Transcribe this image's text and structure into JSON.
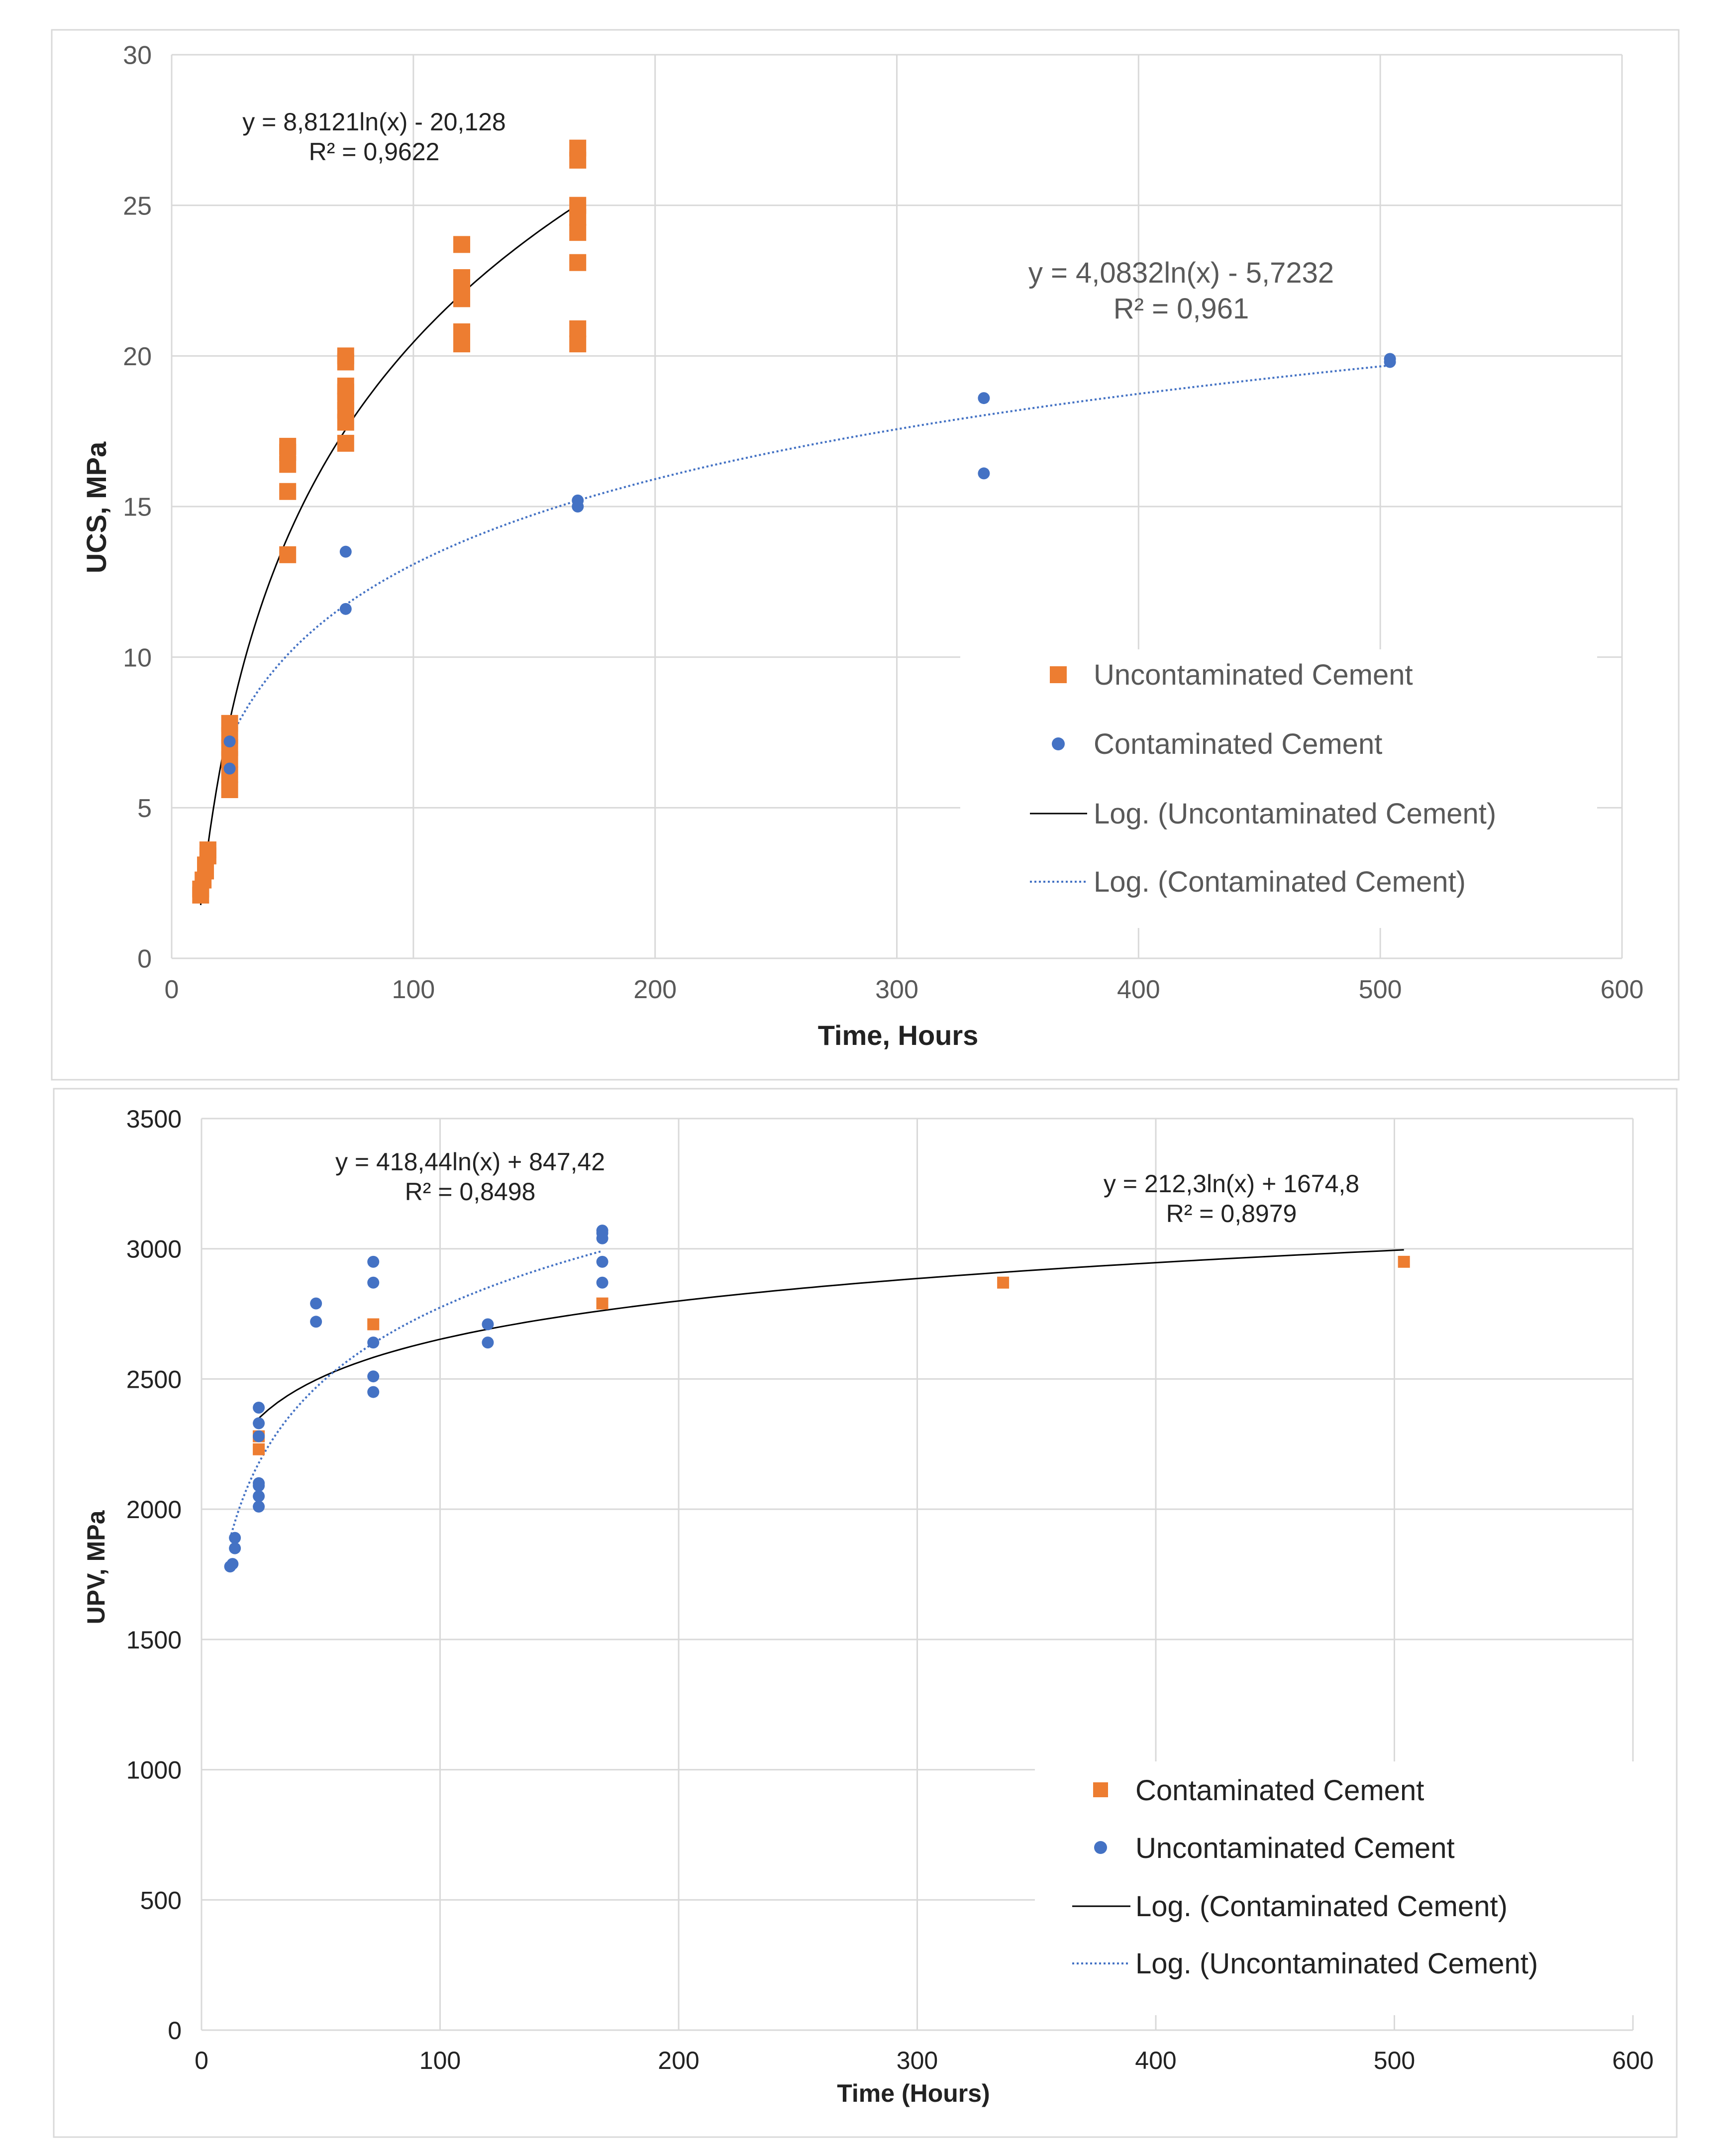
{
  "chart_data": [
    {
      "type": "scatter",
      "title": "",
      "xlabel": "Time, Hours",
      "ylabel": "UCS, MPa",
      "xlim": [
        0,
        600
      ],
      "ylim": [
        0,
        30
      ],
      "xticks": [
        "0",
        "100",
        "200",
        "300",
        "400",
        "500",
        "600"
      ],
      "yticks": [
        "0",
        "5",
        "10",
        "15",
        "20",
        "25",
        "30"
      ],
      "xtick_values": [
        0,
        100,
        200,
        300,
        400,
        500,
        600
      ],
      "ytick_values": [
        0,
        5,
        10,
        15,
        20,
        25,
        30
      ],
      "grid": true,
      "legend_position": "bottom-right",
      "series": [
        {
          "name": "Uncontaminated Cement",
          "marker": "square",
          "color": "#ED7D31",
          "x": [
            12,
            12,
            13,
            14,
            14,
            15,
            15,
            24,
            24,
            24,
            24,
            24,
            24,
            48,
            48,
            48,
            48,
            48,
            72,
            72,
            72,
            72,
            72,
            72,
            72,
            72,
            120,
            120,
            120,
            120,
            120,
            120,
            168,
            168,
            168,
            168,
            168,
            168,
            168,
            168
          ],
          "y": [
            2.1,
            2.3,
            2.6,
            2.9,
            3.1,
            3.4,
            3.6,
            5.6,
            6.1,
            6.6,
            7.0,
            7.4,
            7.8,
            13.4,
            15.5,
            16.4,
            16.8,
            17.0,
            17.1,
            17.8,
            18.2,
            18.5,
            18.8,
            19.0,
            19.8,
            20.0,
            20.4,
            20.8,
            21.9,
            22.3,
            22.6,
            23.7,
            20.4,
            20.9,
            23.1,
            24.1,
            24.6,
            25.0,
            26.5,
            26.9
          ],
          "trendline": {
            "name": "Log. (Uncontaminated Cement)",
            "style": "solid",
            "color": "#000000",
            "a": 8.8121,
            "b": -20.128,
            "x_range": [
              12,
              168
            ]
          }
        },
        {
          "name": "Contaminated Cement",
          "marker": "circle",
          "color": "#4472C4",
          "x": [
            24,
            24,
            72,
            72,
            168,
            168,
            336,
            336,
            504,
            504
          ],
          "y": [
            6.3,
            7.2,
            11.6,
            13.5,
            15.0,
            15.2,
            16.1,
            18.6,
            19.8,
            19.9
          ],
          "trendline": {
            "name": "Log. (Contaminated Cement)",
            "style": "dotted",
            "color": "#4472C4",
            "a": 4.0832,
            "b": -5.7232,
            "x_range": [
              24,
              504
            ]
          }
        }
      ],
      "annotations": [
        {
          "line1": "y = 8,8121ln(x) - 20,128",
          "line2": "R² = 0,9622"
        },
        {
          "line1": "y = 4,0832ln(x) - 5,7232",
          "line2": "R² = 0,961"
        }
      ],
      "legend": [
        {
          "label": "Uncontaminated Cement",
          "kind": "square",
          "color": "#ED7D31"
        },
        {
          "label": "Contaminated Cement",
          "kind": "circle",
          "color": "#4472C4"
        },
        {
          "label": "Log. (Uncontaminated Cement)",
          "kind": "solid",
          "color": "#000000"
        },
        {
          "label": "Log. (Contaminated Cement)",
          "kind": "dotted",
          "color": "#4472C4"
        }
      ]
    },
    {
      "type": "scatter",
      "title": "",
      "xlabel": "Time (Hours)",
      "ylabel": "UPV, MPa",
      "xlim": [
        0,
        600
      ],
      "ylim": [
        0,
        3500
      ],
      "xticks": [
        "0",
        "100",
        "200",
        "300",
        "400",
        "500",
        "600"
      ],
      "yticks": [
        "0",
        "500",
        "1000",
        "1500",
        "2000",
        "2500",
        "3000",
        "3500"
      ],
      "xtick_values": [
        0,
        100,
        200,
        300,
        400,
        500,
        600
      ],
      "ytick_values": [
        0,
        500,
        1000,
        1500,
        2000,
        2500,
        3000,
        3500
      ],
      "grid": true,
      "legend_position": "bottom-right",
      "series": [
        {
          "name": "Contaminated Cement",
          "marker": "square",
          "color": "#ED7D31",
          "x": [
            24,
            24,
            72,
            168,
            336,
            504
          ],
          "y": [
            2230,
            2280,
            2710,
            2790,
            2870,
            2950
          ],
          "trendline": {
            "name": "Log. (Contaminated Cement)",
            "style": "solid",
            "color": "#000000",
            "a": 212.3,
            "b": 1674.8,
            "x_range": [
              24,
              504
            ]
          }
        },
        {
          "name": "Uncontaminated Cement",
          "marker": "circle",
          "color": "#4472C4",
          "x": [
            12,
            13,
            14,
            14,
            24,
            24,
            24,
            24,
            24,
            24,
            24,
            48,
            48,
            72,
            72,
            72,
            72,
            72,
            120,
            120,
            168,
            168,
            168,
            168,
            168
          ],
          "y": [
            1780,
            1790,
            1850,
            1890,
            2010,
            2050,
            2090,
            2100,
            2280,
            2330,
            2390,
            2720,
            2790,
            2450,
            2510,
            2640,
            2870,
            2950,
            2640,
            2710,
            2870,
            2950,
            3040,
            3060,
            3070
          ],
          "trendline": {
            "name": "Log. (Uncontaminated Cement)",
            "style": "dotted",
            "color": "#4472C4",
            "a": 418.44,
            "b": 847.42,
            "x_range": [
              12,
              168
            ]
          }
        }
      ],
      "annotations": [
        {
          "line1": "y = 418,44ln(x) + 847,42",
          "line2": "R² = 0,8498"
        },
        {
          "line1": "y = 212,3ln(x) + 1674,8",
          "line2": "R² = 0,8979"
        }
      ],
      "legend": [
        {
          "label": "Contaminated Cement",
          "kind": "square",
          "color": "#ED7D31"
        },
        {
          "label": "Uncontaminated Cement",
          "kind": "circle",
          "color": "#4472C4"
        },
        {
          "label": "Log. (Contaminated Cement)",
          "kind": "solid",
          "color": "#000000"
        },
        {
          "label": "Log. (Uncontaminated Cement)",
          "kind": "dotted",
          "color": "#4472C4"
        }
      ]
    }
  ]
}
